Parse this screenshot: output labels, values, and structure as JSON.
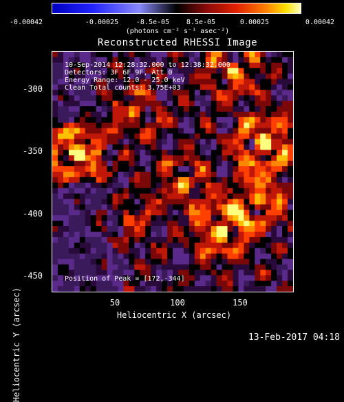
{
  "colorbar": {
    "ticks": [
      "-0.00042",
      "-0.00025",
      "-8.5e-05",
      "8.5e-05",
      "0.00025",
      "0.00042"
    ],
    "units": "(photons cm⁻² s⁻¹ asec⁻²)",
    "colors": [
      "#0000c0",
      "#2222ff",
      "#000000",
      "#e02000",
      "#ff8000",
      "#ffe000",
      "#ffffc0"
    ]
  },
  "title": "Reconstructed RHESSI Image",
  "annotations": {
    "time_range": "10-Sep-2014 12:28:32.000 to 12:38:32.000",
    "detectors": "Detectors: 3F 6F 9F, Att 0",
    "energy": "Energy Range: 12.0 - 25.0 keV",
    "method": "Clean    Total counts: 3.75E+03",
    "peak": "Position of Peak = [172,-344]"
  },
  "axes": {
    "xlabel": "Heliocentric X (arcsec)",
    "ylabel": "Heliocentric Y (arcsec)",
    "xticks": [
      "50",
      "100",
      "150"
    ],
    "yticks": [
      "-300",
      "-350",
      "-400",
      "-450"
    ]
  },
  "footer": "13-Feb-2017 04:18"
}
